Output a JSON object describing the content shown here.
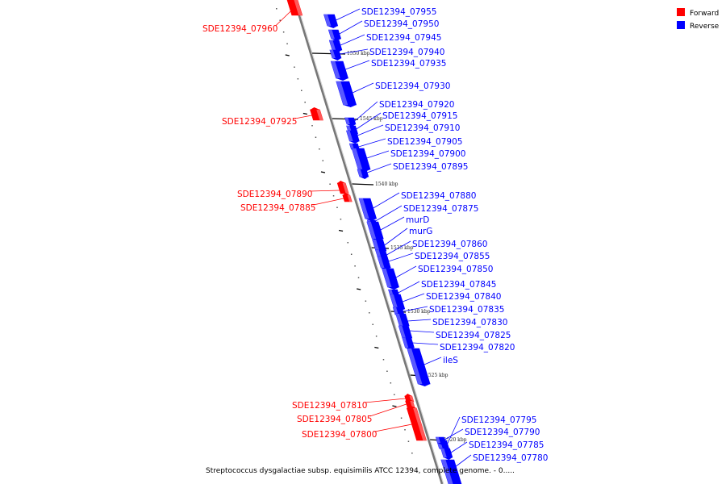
{
  "caption": "Streptococcus dysgalactiae subsp. equisimilis ATCC 12394, complete genome. - 0.....",
  "legend": [
    {
      "label": "Forward",
      "color": "#ff0000"
    },
    {
      "label": "Reverse",
      "color": "#0000ff"
    }
  ],
  "colors": {
    "forward": "#ff0000",
    "reverse": "#0000ff",
    "axis": "#808080"
  },
  "ticks": [
    {
      "label": "1550 kbp",
      "kbp": 1550
    },
    {
      "label": "1545 kbp",
      "kbp": 1545
    },
    {
      "label": "1540 kbp",
      "kbp": 1540
    },
    {
      "label": "1535 kbp",
      "kbp": 1535
    },
    {
      "label": "1530 kbp",
      "kbp": 1530
    },
    {
      "label": "1525 kbp",
      "kbp": 1525
    },
    {
      "label": "1520 kbp",
      "kbp": 1520
    }
  ],
  "genes": [
    {
      "name": "SDE12394_07960",
      "strand": "forward"
    },
    {
      "name": "SDE12394_07955",
      "strand": "reverse"
    },
    {
      "name": "SDE12394_07950",
      "strand": "reverse"
    },
    {
      "name": "SDE12394_07945",
      "strand": "reverse"
    },
    {
      "name": "SDE12394_07940",
      "strand": "reverse"
    },
    {
      "name": "SDE12394_07935",
      "strand": "reverse"
    },
    {
      "name": "SDE12394_07930",
      "strand": "reverse"
    },
    {
      "name": "SDE12394_07925",
      "strand": "forward"
    },
    {
      "name": "SDE12394_07920",
      "strand": "reverse"
    },
    {
      "name": "SDE12394_07915",
      "strand": "reverse"
    },
    {
      "name": "SDE12394_07910",
      "strand": "reverse"
    },
    {
      "name": "SDE12394_07905",
      "strand": "reverse"
    },
    {
      "name": "SDE12394_07900",
      "strand": "reverse"
    },
    {
      "name": "SDE12394_07895",
      "strand": "reverse"
    },
    {
      "name": "SDE12394_07890",
      "strand": "forward"
    },
    {
      "name": "SDE12394_07885",
      "strand": "forward"
    },
    {
      "name": "SDE12394_07880",
      "strand": "reverse"
    },
    {
      "name": "SDE12394_07875",
      "strand": "reverse"
    },
    {
      "name": "murD",
      "strand": "reverse"
    },
    {
      "name": "murG",
      "strand": "reverse"
    },
    {
      "name": "SDE12394_07860",
      "strand": "reverse"
    },
    {
      "name": "SDE12394_07855",
      "strand": "reverse"
    },
    {
      "name": "SDE12394_07850",
      "strand": "reverse"
    },
    {
      "name": "SDE12394_07845",
      "strand": "reverse"
    },
    {
      "name": "SDE12394_07840",
      "strand": "reverse"
    },
    {
      "name": "SDE12394_07835",
      "strand": "reverse"
    },
    {
      "name": "SDE12394_07830",
      "strand": "reverse"
    },
    {
      "name": "SDE12394_07825",
      "strand": "reverse"
    },
    {
      "name": "SDE12394_07820",
      "strand": "reverse"
    },
    {
      "name": "ileS",
      "strand": "reverse"
    },
    {
      "name": "SDE12394_07810",
      "strand": "forward"
    },
    {
      "name": "SDE12394_07805",
      "strand": "forward"
    },
    {
      "name": "SDE12394_07800",
      "strand": "forward"
    },
    {
      "name": "SDE12394_07795",
      "strand": "reverse"
    },
    {
      "name": "SDE12394_07790",
      "strand": "reverse"
    },
    {
      "name": "SDE12394_07785",
      "strand": "reverse"
    },
    {
      "name": "SDE12394_07780",
      "strand": "reverse"
    }
  ]
}
